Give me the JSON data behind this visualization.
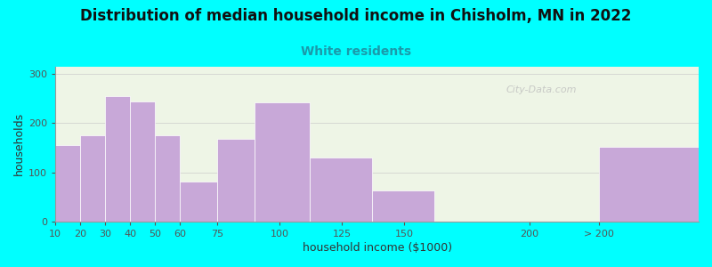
{
  "title": "Distribution of median household income in Chisholm, MN in 2022",
  "subtitle": "White residents",
  "xlabel": "household income ($1000)",
  "ylabel": "households",
  "background_color": "#00FFFF",
  "bar_color": "#c8a8d8",
  "values": [
    155,
    175,
    255,
    245,
    175,
    82,
    168,
    243,
    130,
    63,
    0,
    152
  ],
  "bar_lefts": [
    10,
    20,
    30,
    40,
    50,
    60,
    75,
    90,
    112,
    137,
    162,
    228
  ],
  "bar_rights": [
    20,
    30,
    40,
    50,
    60,
    75,
    90,
    112,
    137,
    162,
    228,
    268
  ],
  "xtick_pos": [
    10,
    20,
    30,
    40,
    50,
    60,
    75,
    100,
    125,
    150,
    200,
    228
  ],
  "xtick_labels": [
    "10",
    "20",
    "30",
    "40",
    "50",
    "60",
    "75",
    "100",
    "125",
    "150",
    "200",
    "> 200"
  ],
  "ylim": [
    0,
    315
  ],
  "yticks": [
    0,
    100,
    200,
    300
  ],
  "xlim": [
    10,
    268
  ],
  "title_fontsize": 12,
  "subtitle_fontsize": 10,
  "subtitle_color": "#1a9aaa",
  "axis_label_fontsize": 9,
  "watermark_text": "City-Data.com",
  "plot_bg_color": "#eef5e6"
}
